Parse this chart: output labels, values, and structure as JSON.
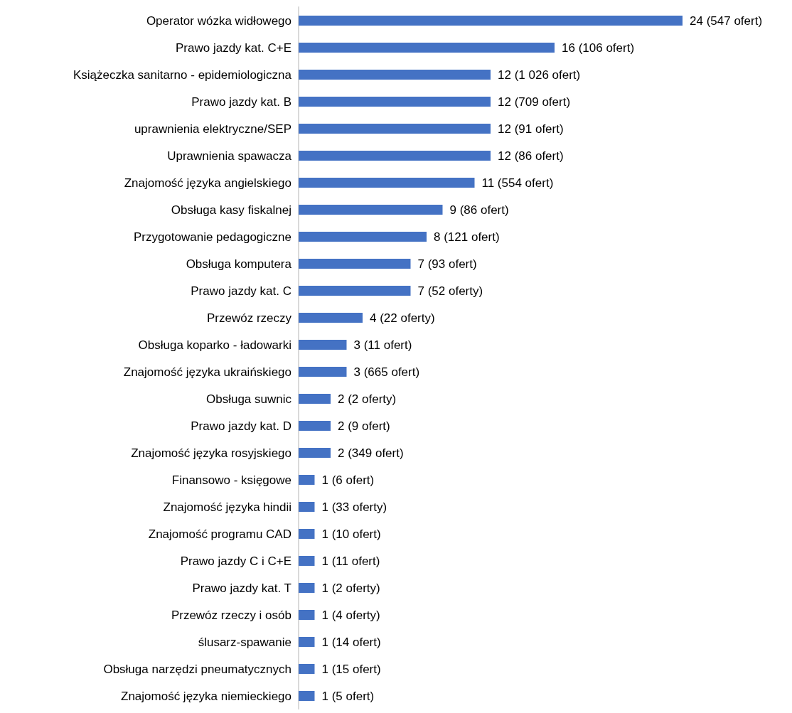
{
  "chart_data": {
    "type": "bar",
    "orientation": "horizontal",
    "categories": [
      "Operator wózka widłowego",
      "Prawo jazdy kat. C+E",
      "Książeczka sanitarno - epidemiologiczna",
      "Prawo jazdy kat. B",
      "uprawnienia elektryczne/SEP",
      "Uprawnienia spawacza",
      "Znajomość języka angielskiego",
      "Obsługa kasy fiskalnej",
      "Przygotowanie pedagogiczne",
      "Obsługa komputera",
      "Prawo jazdy kat. C",
      "Przewóz rzeczy",
      "Obsługa koparko - ładowarki",
      "Znajomość języka ukraińskiego",
      "Obsługa suwnic",
      "Prawo jazdy kat. D",
      "Znajomość języka rosyjskiego",
      "Finansowo - księgowe",
      "Znajomość języka hindii",
      "Znajomość programu CAD",
      "Prawo jazdy C i C+E",
      "Prawo jazdy kat. T",
      "Przewóz rzeczy i osób",
      "ślusarz-spawanie",
      "Obsługa narzędzi pneumatycznych",
      "Znajomość języka niemieckiego"
    ],
    "values": [
      24,
      16,
      12,
      12,
      12,
      12,
      11,
      9,
      8,
      7,
      7,
      4,
      3,
      3,
      2,
      2,
      2,
      1,
      1,
      1,
      1,
      1,
      1,
      1,
      1,
      1
    ],
    "value_labels": [
      "24 (547 ofert)",
      "16 (106 ofert)",
      "12 (1 026 ofert)",
      "12 (709 ofert)",
      "12 (91 ofert)",
      "12 (86 ofert)",
      "11 (554 ofert)",
      "9 (86 ofert)",
      "8 (121 ofert)",
      "7 (93 ofert)",
      "7 (52 oferty)",
      "4 (22 oferty)",
      "3 (11 ofert)",
      "3 (665 ofert)",
      "2 (2 oferty)",
      "2 (9 ofert)",
      "2 (349 ofert)",
      "1 (6 ofert)",
      "1 (33 oferty)",
      "1 (10 ofert)",
      "1 (11 ofert)",
      "1 (2 oferty)",
      "1 (4 oferty)",
      "1 (14 ofert)",
      "1 (15 ofert)",
      "1 (5 ofert)"
    ],
    "color": "#4472c4"
  }
}
